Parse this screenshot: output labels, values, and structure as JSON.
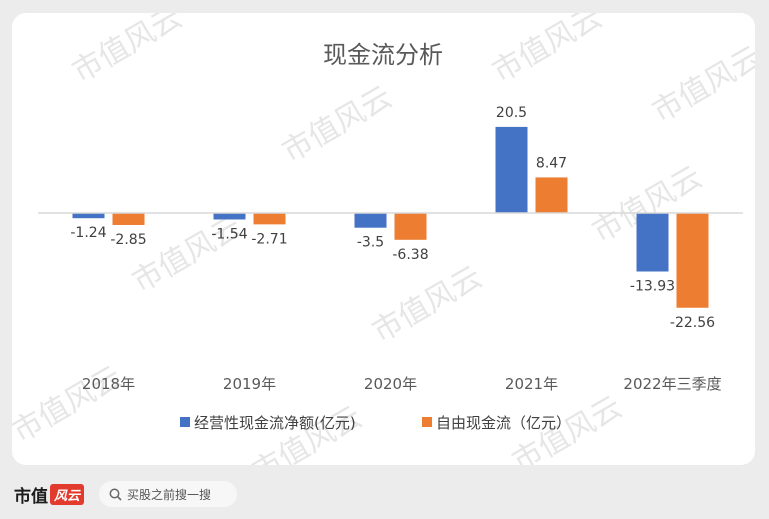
{
  "chart_data": {
    "type": "bar",
    "title": "现金流分析",
    "categories": [
      "2018年",
      "2019年",
      "2020年",
      "2021年",
      "2022年三季度"
    ],
    "series": [
      {
        "name": "经营性现金流净额(亿元)",
        "values": [
          -1.24,
          -1.54,
          -3.5,
          20.5,
          -13.93
        ],
        "labels": [
          "-1.24",
          "-1.54",
          "-3.5",
          "20.5",
          "-13.93"
        ],
        "color": "#4472c4"
      },
      {
        "name": "自由现金流（亿元）",
        "values": [
          -2.85,
          -2.71,
          -6.38,
          8.47,
          -22.56
        ],
        "labels": [
          "-2.85",
          "-2.71",
          "-6.38",
          "8.47",
          "-22.56"
        ],
        "color": "#ed7d31"
      }
    ],
    "ylim": [
      -25,
      25
    ],
    "grid": false,
    "legend": "bottom",
    "axis_color": "#d9d9d9"
  },
  "watermark": "市值风云",
  "footer": {
    "brand": "市值",
    "brand_mark": "风云",
    "search_placeholder": "买股之前搜一搜"
  }
}
